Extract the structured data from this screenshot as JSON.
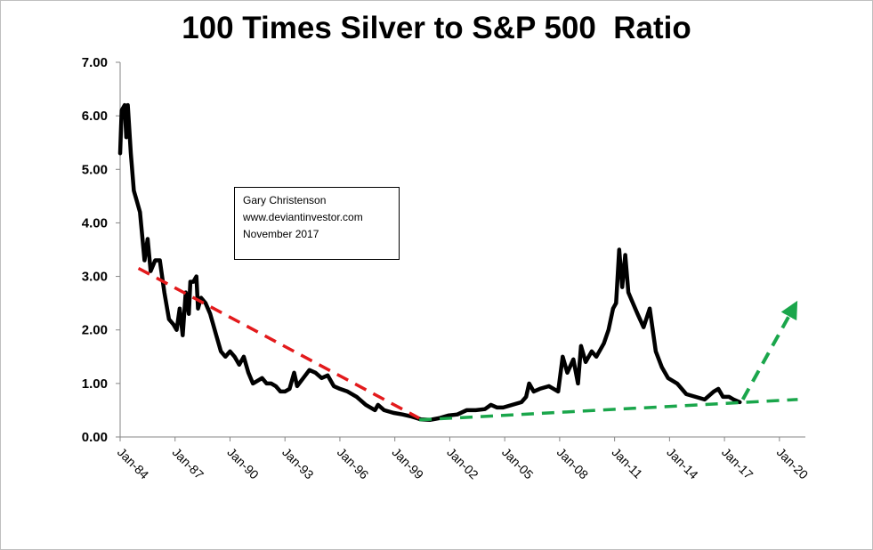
{
  "chart_data": {
    "type": "line",
    "title": "100 Times Silver to S&P 500  Ratio",
    "y_ticks": [
      "0.00",
      "1.00",
      "2.00",
      "3.00",
      "4.00",
      "5.00",
      "6.00",
      "7.00"
    ],
    "ylim": [
      0,
      7
    ],
    "x_ticks": [
      "Jan-84",
      "Jan-87",
      "Jan-90",
      "Jan-93",
      "Jan-96",
      "Jan-99",
      "Jan-02",
      "Jan-05",
      "Jan-08",
      "Jan-11",
      "Jan-14",
      "Jan-17",
      "Jan-20"
    ],
    "xlim": [
      "1984-01",
      "2021-06"
    ],
    "grid": false,
    "series": [
      {
        "color": "#000000",
        "points": [
          [
            "1984-01",
            5.3
          ],
          [
            "1984-02",
            6.1
          ],
          [
            "1984-04",
            6.2
          ],
          [
            "1984-05",
            5.6
          ],
          [
            "1984-06",
            6.2
          ],
          [
            "1984-08",
            5.3
          ],
          [
            "1984-10",
            4.6
          ],
          [
            "1984-12",
            4.4
          ],
          [
            "1985-02",
            4.2
          ],
          [
            "1985-05",
            3.3
          ],
          [
            "1985-07",
            3.7
          ],
          [
            "1985-09",
            3.1
          ],
          [
            "1985-12",
            3.3
          ],
          [
            "1986-03",
            3.3
          ],
          [
            "1986-06",
            2.7
          ],
          [
            "1986-09",
            2.2
          ],
          [
            "1986-12",
            2.1
          ],
          [
            "1987-02",
            2.0
          ],
          [
            "1987-04",
            2.4
          ],
          [
            "1987-06",
            1.9
          ],
          [
            "1987-08",
            2.7
          ],
          [
            "1987-10",
            2.3
          ],
          [
            "1987-11",
            2.9
          ],
          [
            "1988-01",
            2.9
          ],
          [
            "1988-03",
            3.0
          ],
          [
            "1988-04",
            2.4
          ],
          [
            "1988-06",
            2.6
          ],
          [
            "1988-09",
            2.5
          ],
          [
            "1988-12",
            2.3
          ],
          [
            "1989-04",
            1.9
          ],
          [
            "1989-07",
            1.6
          ],
          [
            "1989-10",
            1.5
          ],
          [
            "1990-01",
            1.6
          ],
          [
            "1990-04",
            1.5
          ],
          [
            "1990-07",
            1.35
          ],
          [
            "1990-10",
            1.5
          ],
          [
            "1991-01",
            1.2
          ],
          [
            "1991-04",
            1.0
          ],
          [
            "1991-07",
            1.05
          ],
          [
            "1991-10",
            1.1
          ],
          [
            "1992-01",
            1.0
          ],
          [
            "1992-04",
            1.0
          ],
          [
            "1992-07",
            0.95
          ],
          [
            "1992-10",
            0.85
          ],
          [
            "1993-01",
            0.85
          ],
          [
            "1993-04",
            0.9
          ],
          [
            "1993-07",
            1.2
          ],
          [
            "1993-09",
            0.95
          ],
          [
            "1994-01",
            1.1
          ],
          [
            "1994-05",
            1.25
          ],
          [
            "1994-09",
            1.2
          ],
          [
            "1995-01",
            1.1
          ],
          [
            "1995-05",
            1.15
          ],
          [
            "1995-09",
            0.95
          ],
          [
            "1996-01",
            0.9
          ],
          [
            "1996-06",
            0.85
          ],
          [
            "1996-12",
            0.75
          ],
          [
            "1997-06",
            0.6
          ],
          [
            "1997-12",
            0.5
          ],
          [
            "1998-02",
            0.6
          ],
          [
            "1998-06",
            0.5
          ],
          [
            "1998-12",
            0.45
          ],
          [
            "1999-06",
            0.42
          ],
          [
            "1999-12",
            0.38
          ],
          [
            "2000-06",
            0.33
          ],
          [
            "2000-12",
            0.32
          ],
          [
            "2001-06",
            0.35
          ],
          [
            "2001-12",
            0.4
          ],
          [
            "2002-06",
            0.42
          ],
          [
            "2002-12",
            0.5
          ],
          [
            "2003-06",
            0.5
          ],
          [
            "2003-12",
            0.52
          ],
          [
            "2004-04",
            0.6
          ],
          [
            "2004-08",
            0.55
          ],
          [
            "2004-12",
            0.55
          ],
          [
            "2005-06",
            0.6
          ],
          [
            "2005-12",
            0.65
          ],
          [
            "2006-03",
            0.75
          ],
          [
            "2006-05",
            1.0
          ],
          [
            "2006-08",
            0.85
          ],
          [
            "2006-12",
            0.9
          ],
          [
            "2007-06",
            0.95
          ],
          [
            "2007-12",
            0.85
          ],
          [
            "2008-03",
            1.5
          ],
          [
            "2008-06",
            1.2
          ],
          [
            "2008-10",
            1.45
          ],
          [
            "2009-01",
            1.0
          ],
          [
            "2009-03",
            1.7
          ],
          [
            "2009-06",
            1.4
          ],
          [
            "2009-10",
            1.6
          ],
          [
            "2010-01",
            1.5
          ],
          [
            "2010-06",
            1.75
          ],
          [
            "2010-09",
            2.0
          ],
          [
            "2010-12",
            2.4
          ],
          [
            "2011-02",
            2.5
          ],
          [
            "2011-04",
            3.5
          ],
          [
            "2011-06",
            2.8
          ],
          [
            "2011-08",
            3.4
          ],
          [
            "2011-10",
            2.7
          ],
          [
            "2012-01",
            2.5
          ],
          [
            "2012-04",
            2.3
          ],
          [
            "2012-08",
            2.05
          ],
          [
            "2012-12",
            2.4
          ],
          [
            "2013-04",
            1.6
          ],
          [
            "2013-08",
            1.3
          ],
          [
            "2013-12",
            1.1
          ],
          [
            "2014-06",
            1.0
          ],
          [
            "2014-12",
            0.8
          ],
          [
            "2015-06",
            0.75
          ],
          [
            "2015-12",
            0.7
          ],
          [
            "2016-06",
            0.85
          ],
          [
            "2016-09",
            0.9
          ],
          [
            "2016-12",
            0.75
          ],
          [
            "2017-04",
            0.75
          ],
          [
            "2017-07",
            0.7
          ],
          [
            "2017-11",
            0.65
          ]
        ]
      },
      {
        "color": "#e31a1c",
        "dashed": true,
        "points": [
          [
            "1985-01",
            3.15
          ],
          [
            "2000-05",
            0.35
          ]
        ]
      },
      {
        "color": "#1aa64b",
        "dashed": true,
        "points": [
          [
            "2000-05",
            0.32
          ],
          [
            "2021-01",
            0.7
          ]
        ]
      }
    ],
    "annotations": [
      {
        "type": "arrow",
        "color": "#1aa64b",
        "dashed": true,
        "from": [
          "2018-01",
          0.7
        ],
        "to": [
          "2020-10",
          2.4
        ]
      }
    ],
    "textbox": [
      "Gary Christenson",
      "www.deviantinvestor.com",
      "November 2017"
    ]
  }
}
